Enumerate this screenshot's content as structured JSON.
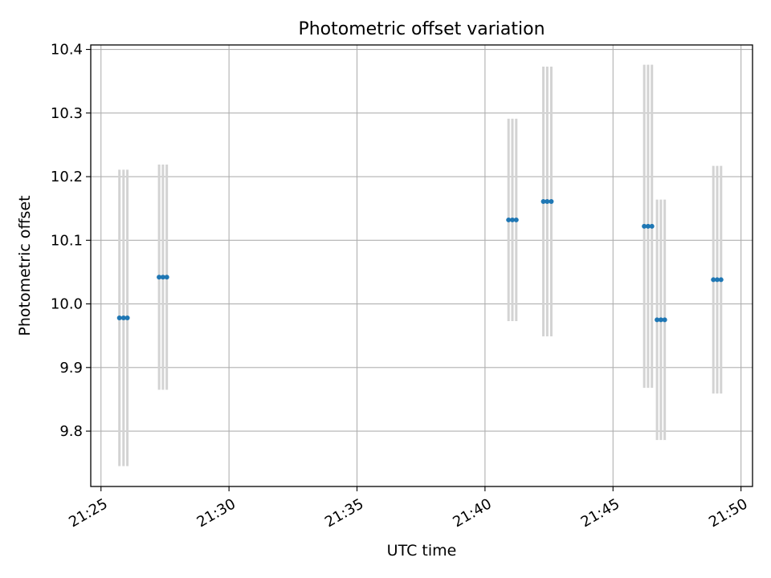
{
  "chart_data": {
    "type": "scatter",
    "title": "Photometric offset variation",
    "xlabel": "UTC time",
    "ylabel": "Photometric offset",
    "x_tick_labels": [
      "21:25",
      "21:30",
      "21:35",
      "21:40",
      "21:45",
      "21:50"
    ],
    "x_ticks_minutes": [
      25,
      30,
      35,
      40,
      45,
      50
    ],
    "y_ticks": [
      9.8,
      9.9,
      10.0,
      10.1,
      10.2,
      10.3,
      10.4
    ],
    "y_tick_labels": [
      "9.8",
      "9.9",
      "10.0",
      "10.1",
      "10.2",
      "10.3",
      "10.4"
    ],
    "xlim_minutes": [
      24.6,
      50.45
    ],
    "ylim": [
      9.713,
      10.407
    ],
    "grid": true,
    "colors": {
      "point": "#1f77b4",
      "errorbar": "#d3d3d3",
      "grid": "#b0b0b0"
    },
    "series": [
      {
        "points": [
          {
            "time": "21:25:43",
            "minute": 25.72,
            "y": 9.978,
            "yerr": 0.233
          },
          {
            "time": "21:25:53",
            "minute": 25.88,
            "y": 9.978,
            "yerr": 0.233
          },
          {
            "time": "21:26:02",
            "minute": 26.03,
            "y": 9.978,
            "yerr": 0.233
          },
          {
            "time": "21:27:16",
            "minute": 27.27,
            "y": 10.042,
            "yerr": 0.177
          },
          {
            "time": "21:27:25",
            "minute": 27.42,
            "y": 10.042,
            "yerr": 0.177
          },
          {
            "time": "21:27:34",
            "minute": 27.57,
            "y": 10.042,
            "yerr": 0.177
          },
          {
            "time": "21:40:55",
            "minute": 40.92,
            "y": 10.132,
            "yerr": 0.159
          },
          {
            "time": "21:41:04",
            "minute": 41.07,
            "y": 10.132,
            "yerr": 0.159
          },
          {
            "time": "21:41:13",
            "minute": 41.22,
            "y": 10.132,
            "yerr": 0.159
          },
          {
            "time": "21:42:17",
            "minute": 42.28,
            "y": 10.161,
            "yerr": 0.212
          },
          {
            "time": "21:42:26",
            "minute": 42.43,
            "y": 10.161,
            "yerr": 0.212
          },
          {
            "time": "21:42:35",
            "minute": 42.59,
            "y": 10.161,
            "yerr": 0.212
          },
          {
            "time": "21:46:13",
            "minute": 46.22,
            "y": 10.122,
            "yerr": 0.254
          },
          {
            "time": "21:46:22",
            "minute": 46.37,
            "y": 10.122,
            "yerr": 0.254
          },
          {
            "time": "21:46:31",
            "minute": 46.52,
            "y": 10.122,
            "yerr": 0.254
          },
          {
            "time": "21:46:43",
            "minute": 46.72,
            "y": 9.975,
            "yerr": 0.189
          },
          {
            "time": "21:46:52",
            "minute": 46.87,
            "y": 9.975,
            "yerr": 0.189
          },
          {
            "time": "21:47:01",
            "minute": 47.02,
            "y": 9.975,
            "yerr": 0.189
          },
          {
            "time": "21:48:55",
            "minute": 48.92,
            "y": 10.038,
            "yerr": 0.179
          },
          {
            "time": "21:49:04",
            "minute": 49.07,
            "y": 10.038,
            "yerr": 0.179
          },
          {
            "time": "21:49:13",
            "minute": 49.22,
            "y": 10.038,
            "yerr": 0.179
          }
        ]
      }
    ]
  }
}
